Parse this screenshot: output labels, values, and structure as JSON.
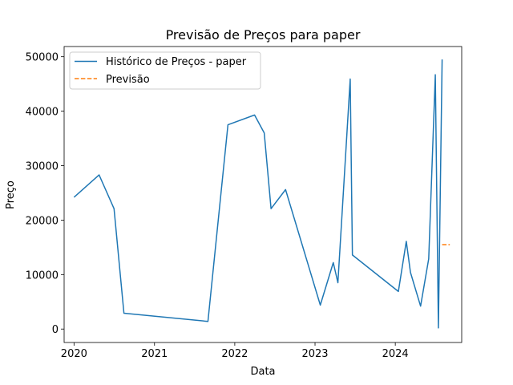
{
  "chart_data": {
    "type": "line",
    "title": "Previsão de Preços para paper",
    "xlabel": "Data",
    "ylabel": "Preço",
    "xlim": [
      "2019-11-17",
      "2024-10-29"
    ],
    "ylim": [
      -2470,
      51870
    ],
    "x_ticks": [
      {
        "date": "2020-01-01",
        "label": "2020"
      },
      {
        "date": "2021-01-01",
        "label": "2021"
      },
      {
        "date": "2022-01-01",
        "label": "2022"
      },
      {
        "date": "2023-01-01",
        "label": "2023"
      },
      {
        "date": "2024-01-01",
        "label": "2024"
      }
    ],
    "y_ticks": [
      {
        "value": 0,
        "label": "0"
      },
      {
        "value": 10000,
        "label": "10000"
      },
      {
        "value": 20000,
        "label": "20000"
      },
      {
        "value": 30000,
        "label": "30000"
      },
      {
        "value": 40000,
        "label": "40000"
      },
      {
        "value": 50000,
        "label": "50000"
      }
    ],
    "grid": false,
    "legend_position": "top-left",
    "series": [
      {
        "name": "Histórico de Preços - paper",
        "color": "#1f77b4",
        "style": "solid",
        "x": [
          "2020-01-01",
          "2020-04-24",
          "2020-07-01",
          "2020-08-15",
          "2021-09-01",
          "2021-12-01",
          "2022-04-01",
          "2022-05-15",
          "2022-06-15",
          "2022-08-20",
          "2023-01-25",
          "2023-03-25",
          "2023-04-15",
          "2023-06-10",
          "2023-06-20",
          "2024-01-15",
          "2024-02-20",
          "2024-03-10",
          "2024-04-25",
          "2024-06-01",
          "2024-07-01",
          "2024-07-15",
          "2024-08-01"
        ],
        "y": [
          24200,
          28300,
          22100,
          2900,
          1400,
          37500,
          39300,
          36000,
          22100,
          25600,
          4400,
          12200,
          8500,
          45900,
          13600,
          6900,
          16100,
          10400,
          4200,
          12900,
          46700,
          200,
          49500
        ]
      },
      {
        "name": "Previsão",
        "color": "#ff7f0e",
        "style": "dashed",
        "x": [
          "2024-08-01",
          "2024-09-05"
        ],
        "y": [
          15500,
          15500
        ]
      }
    ]
  }
}
